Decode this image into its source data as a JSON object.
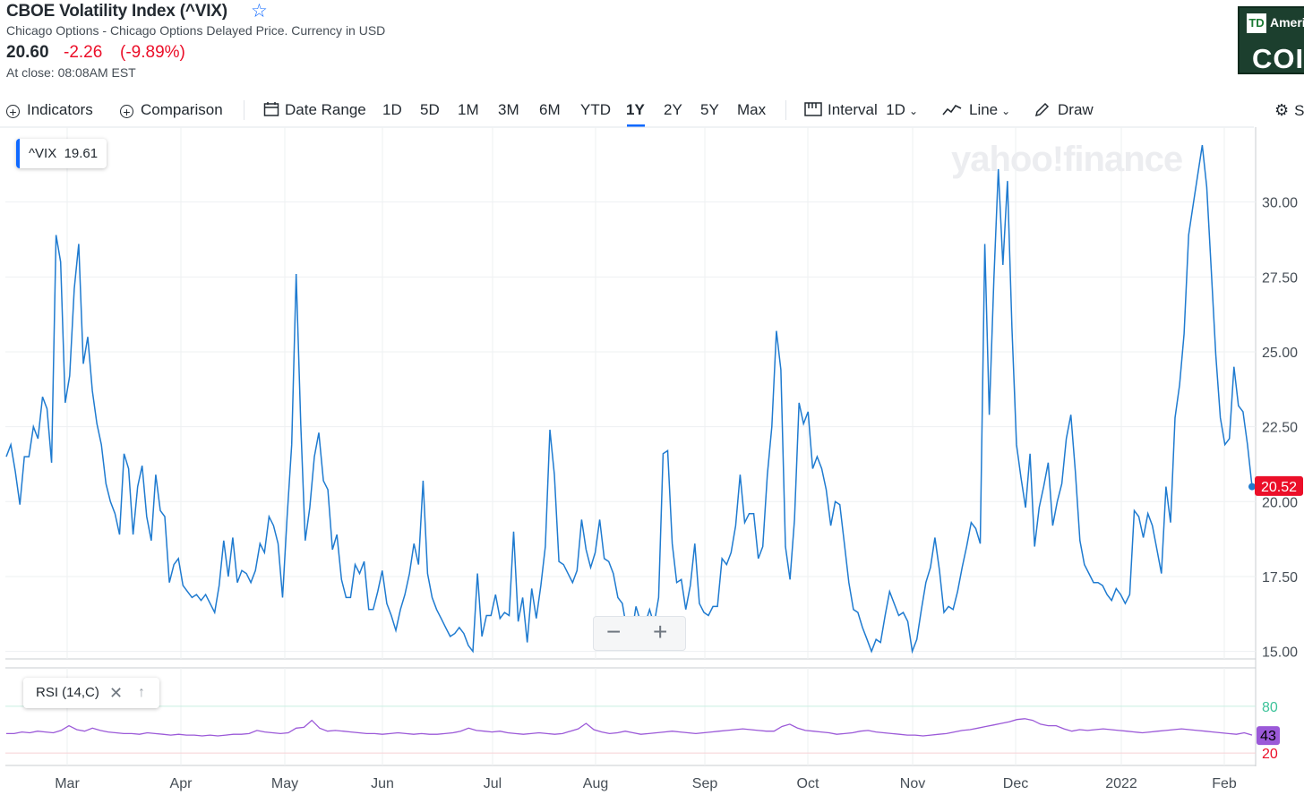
{
  "header": {
    "title": "CBOE Volatility Index (^VIX)",
    "subtitle": "Chicago Options - Chicago Options Delayed Price. Currency in USD",
    "price": "20.60",
    "change": "-2.26",
    "change_pct": "(-9.89%)",
    "close_time": "At close: 08:08AM EST",
    "star_icon": "star-outline-icon"
  },
  "ad": {
    "logo": "TD",
    "line1": "Ameri",
    "line2": "COI"
  },
  "toolbar": {
    "indicators": "Indicators",
    "comparison": "Comparison",
    "date_range": "Date Range",
    "ranges": [
      "1D",
      "5D",
      "1M",
      "3M",
      "6M",
      "YTD",
      "1Y",
      "2Y",
      "5Y",
      "Max"
    ],
    "selected_range": "1Y",
    "interval": "Interval",
    "interval_value": "1D",
    "chart_type": "Line",
    "draw": "Draw",
    "settings": "S"
  },
  "badges": {
    "vix_label": "^VIX",
    "vix_value": "19.61",
    "rsi_label": "RSI (14,C)",
    "close_glyph": "✕",
    "up_glyph": "↑"
  },
  "watermark": "yahoo!finance",
  "colors": {
    "line": "#1f7bd0",
    "rsi": "#9b59d8",
    "last_price": "#eb0f29",
    "accent": "#0f69ff"
  },
  "chart_data": [
    {
      "type": "line",
      "title": "",
      "x_ticks": [
        "Mar",
        "Apr",
        "May",
        "Jun",
        "Jul",
        "Aug",
        "Sep",
        "Oct",
        "Nov",
        "Dec",
        "2022",
        "Feb"
      ],
      "y_ticks": [
        "15.00",
        "17.50",
        "20.00",
        "22.50",
        "25.00",
        "27.50",
        "30.00"
      ],
      "ylim": [
        14.75,
        32.5
      ],
      "last_price_label": "20.52",
      "grid": true,
      "series": [
        {
          "values": [
            21.5,
            21.9,
            21.0,
            19.9,
            21.5,
            21.5,
            22.5,
            22.1,
            23.5,
            23.1,
            21.3,
            28.9,
            28.0,
            23.3,
            24.2,
            27.1,
            28.6,
            24.6,
            25.5,
            23.7,
            22.6,
            21.9,
            20.6,
            20.0,
            19.6,
            18.9,
            21.6,
            21.1,
            18.9,
            20.5,
            21.2,
            19.5,
            18.7,
            20.9,
            19.7,
            19.5,
            17.3,
            17.9,
            18.1,
            17.2,
            17.0,
            16.8,
            16.9,
            16.7,
            16.9,
            16.6,
            16.3,
            17.2,
            18.7,
            17.5,
            18.8,
            17.3,
            17.7,
            17.6,
            17.3,
            17.7,
            18.6,
            18.3,
            19.5,
            19.2,
            18.6,
            16.8,
            19.5,
            21.9,
            27.6,
            22.6,
            18.7,
            19.8,
            21.5,
            22.3,
            20.7,
            20.4,
            18.4,
            18.9,
            17.4,
            16.8,
            16.8,
            17.9,
            17.6,
            18.0,
            16.4,
            16.4,
            17.0,
            17.7,
            16.6,
            16.2,
            15.7,
            16.4,
            16.9,
            17.6,
            18.6,
            17.9,
            20.7,
            17.6,
            16.8,
            16.4,
            16.1,
            15.8,
            15.5,
            15.6,
            15.8,
            15.6,
            15.2,
            15.0,
            17.6,
            15.5,
            16.2,
            16.2,
            16.9,
            16.1,
            16.3,
            16.2,
            19.0,
            16.0,
            16.8,
            15.3,
            17.1,
            16.1,
            17.2,
            18.5,
            22.4,
            20.9,
            18.0,
            17.9,
            17.6,
            17.3,
            17.7,
            19.4,
            18.4,
            17.8,
            18.3,
            19.4,
            18.1,
            18.0,
            17.6,
            16.8,
            16.6,
            15.7,
            15.5,
            16.5,
            16.0,
            15.9,
            16.4,
            15.9,
            16.8,
            21.6,
            21.7,
            18.6,
            17.3,
            17.4,
            16.4,
            17.2,
            18.6,
            16.6,
            16.3,
            16.2,
            16.5,
            16.5,
            18.1,
            17.9,
            18.3,
            19.2,
            20.9,
            19.3,
            19.6,
            19.6,
            18.1,
            18.5,
            20.9,
            22.5,
            25.7,
            24.4,
            18.5,
            17.4,
            19.4,
            23.3,
            22.6,
            23.0,
            21.1,
            21.5,
            21.1,
            20.4,
            19.2,
            20.0,
            19.9,
            18.6,
            17.3,
            16.4,
            16.3,
            15.8,
            15.4,
            15.0,
            15.4,
            15.3,
            16.2,
            17.0,
            16.6,
            16.2,
            16.3,
            16.0,
            15.0,
            15.4,
            16.4,
            17.3,
            17.8,
            18.8,
            17.7,
            16.3,
            16.5,
            16.4,
            17.0,
            17.8,
            18.5,
            19.3,
            19.1,
            18.6,
            28.6,
            22.9,
            27.4,
            31.1,
            27.9,
            30.7,
            25.8,
            21.9,
            20.8,
            19.8,
            21.6,
            18.5,
            19.8,
            20.5,
            21.3,
            19.2,
            20.0,
            20.6,
            22.1,
            22.9,
            21.0,
            18.7,
            17.9,
            17.6,
            17.3,
            17.3,
            17.2,
            16.9,
            16.7,
            17.1,
            16.9,
            16.6,
            16.9,
            19.7,
            19.5,
            18.8,
            19.6,
            19.2,
            18.4,
            17.6,
            20.5,
            19.3,
            22.8,
            23.9,
            25.6,
            28.9,
            29.9,
            30.9,
            31.9,
            30.5,
            27.7,
            24.9,
            22.8,
            21.9,
            22.1,
            24.5,
            23.2,
            23.0,
            21.9,
            20.5
          ]
        }
      ]
    },
    {
      "type": "line",
      "title": "",
      "y_ticks": [
        "80",
        "20"
      ],
      "ylim": [
        0,
        100
      ],
      "last_value_label": "43",
      "series": [
        {
          "values": [
            45,
            45,
            47,
            46,
            48,
            47,
            46,
            49,
            55,
            50,
            48,
            52,
            49,
            47,
            46,
            45,
            45,
            44,
            46,
            45,
            44,
            43,
            44,
            43,
            43,
            42,
            43,
            42,
            43,
            44,
            44,
            45,
            49,
            47,
            46,
            45,
            46,
            52,
            53,
            62,
            52,
            48,
            49,
            48,
            47,
            46,
            45,
            45,
            44,
            45,
            46,
            45,
            44,
            45,
            44,
            44,
            45,
            46,
            48,
            52,
            49,
            48,
            47,
            48,
            46,
            45,
            44,
            45,
            46,
            45,
            44,
            45,
            48,
            51,
            58,
            50,
            47,
            45,
            46,
            48,
            46,
            44,
            45,
            46,
            47,
            48,
            47,
            46,
            45,
            46,
            47,
            48,
            49,
            50,
            51,
            50,
            49,
            48,
            48,
            54,
            57,
            52,
            49,
            48,
            47,
            46,
            44,
            45,
            46,
            48,
            49,
            47,
            46,
            45,
            44,
            43,
            43,
            42,
            43,
            44,
            45,
            47,
            49,
            50,
            52,
            54,
            56,
            58,
            60,
            63,
            64,
            62,
            57,
            55,
            55,
            51,
            48,
            50,
            49,
            50,
            51,
            50,
            49,
            48,
            47,
            46,
            47,
            48,
            49,
            50,
            51,
            50,
            49,
            48,
            47,
            46,
            45,
            44,
            46,
            43
          ]
        }
      ]
    }
  ]
}
